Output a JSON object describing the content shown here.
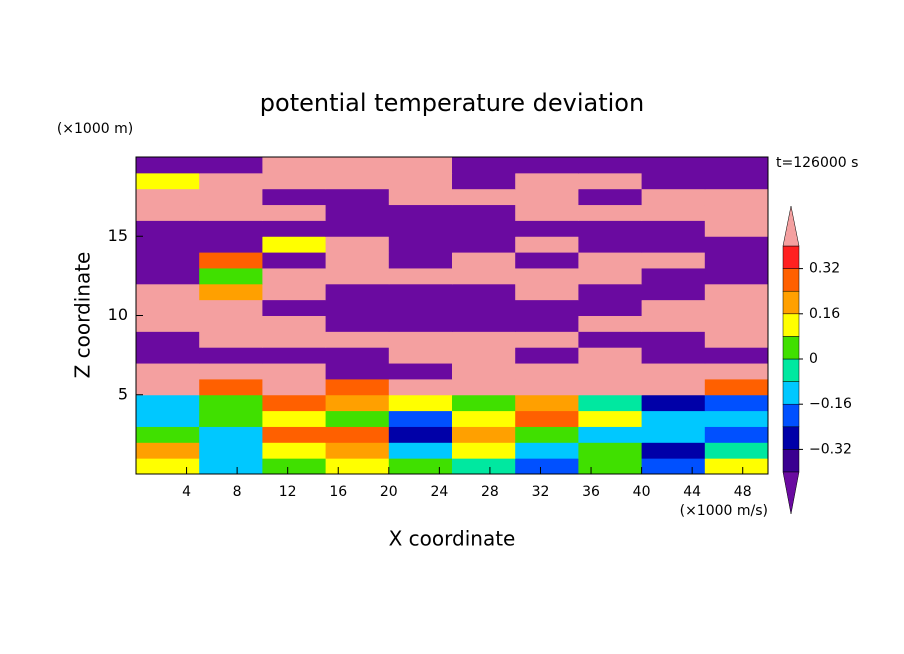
{
  "chart_data": {
    "type": "contourf",
    "title": "potential temperature deviation",
    "x_label": "X coordinate",
    "y_label": "Z coordinate",
    "x_unit": "(×1000 m/s)",
    "y_unit": "(×1000 m)",
    "annotation": "t=126000 s",
    "xlim": [
      0,
      50
    ],
    "ylim": [
      0,
      20
    ],
    "xticks": [
      4,
      8,
      12,
      16,
      20,
      24,
      28,
      32,
      36,
      40,
      44,
      48
    ],
    "yticks": [
      5,
      10,
      15
    ],
    "x": [
      2.5,
      7.5,
      12.5,
      17.5,
      22.5,
      27.5,
      32.5,
      37.5,
      42.5,
      47.5
    ],
    "y": [
      0.5,
      1.5,
      2.5,
      3.5,
      4.5,
      5.5,
      6.5,
      7.5,
      8.5,
      9.5,
      10.5,
      11.5,
      12.5,
      13.5,
      14.5,
      15.5,
      16.5,
      17.5,
      18.5,
      19.5
    ],
    "z": [
      [
        0.1,
        -0.1,
        0.05,
        0.1,
        0,
        -0.05,
        -0.2,
        0.05,
        -0.2,
        0.1
      ],
      [
        0.2,
        -0.15,
        0.1,
        0.2,
        -0.1,
        0.1,
        -0.1,
        0,
        -0.25,
        -0.05
      ],
      [
        0,
        -0.1,
        0.25,
        0.3,
        -0.3,
        0.2,
        0,
        -0.1,
        -0.15,
        -0.2
      ],
      [
        -0.1,
        0,
        0.1,
        0.05,
        -0.2,
        0.15,
        0.3,
        0.1,
        -0.1,
        -0.1
      ],
      [
        -0.15,
        0.05,
        0.3,
        0.2,
        0.1,
        0.05,
        0.2,
        -0.05,
        -0.3,
        -0.2
      ],
      [
        0.5,
        0.3,
        0.5,
        0.3,
        0.5,
        0.5,
        0.5,
        0.5,
        0.5,
        0.3
      ],
      [
        0.5,
        0.5,
        0.5,
        -0.5,
        -0.5,
        0.5,
        0.5,
        0.5,
        0.5,
        0.5
      ],
      [
        -0.5,
        -0.5,
        -0.5,
        -0.5,
        0.5,
        0.5,
        -0.5,
        0.5,
        -0.5,
        -0.5
      ],
      [
        -0.5,
        0.5,
        0.5,
        0.5,
        0.5,
        0.5,
        0.5,
        -0.5,
        -0.5,
        0.5
      ],
      [
        0.5,
        0.5,
        0.5,
        -0.5,
        -0.5,
        -0.5,
        -0.5,
        0.5,
        0.5,
        0.5
      ],
      [
        0.5,
        0.5,
        -0.5,
        -0.5,
        -0.5,
        -0.5,
        -0.5,
        -0.5,
        0.5,
        0.5
      ],
      [
        0.5,
        0.2,
        0.5,
        -0.5,
        -0.5,
        -0.5,
        0.5,
        -0.5,
        -0.5,
        0.5
      ],
      [
        -0.5,
        0,
        0.5,
        0.5,
        0.5,
        0.5,
        0.5,
        0.5,
        -0.5,
        -0.5
      ],
      [
        -0.5,
        0.3,
        -0.5,
        0.5,
        -0.5,
        0.5,
        -0.5,
        0.5,
        0.5,
        -0.5
      ],
      [
        -0.5,
        -0.5,
        0.1,
        0.5,
        -0.5,
        -0.5,
        0.5,
        -0.5,
        -0.5,
        -0.5
      ],
      [
        -0.5,
        -0.5,
        -0.5,
        -0.5,
        -0.5,
        -0.5,
        -0.5,
        -0.5,
        -0.5,
        0.5
      ],
      [
        0.5,
        0.5,
        0.5,
        -0.5,
        -0.5,
        -0.5,
        0.5,
        0.5,
        0.5,
        0.5
      ],
      [
        0.5,
        0.5,
        -0.5,
        -0.5,
        0.5,
        0.5,
        0.5,
        -0.5,
        0.5,
        0.5
      ],
      [
        0.1,
        0.5,
        0.5,
        0.5,
        0.5,
        -0.5,
        0.5,
        0.5,
        -0.5,
        -0.5
      ],
      [
        -0.5,
        -0.5,
        0.5,
        0.5,
        0.5,
        -0.5,
        -0.5,
        -0.5,
        -0.5,
        -0.5
      ]
    ],
    "levels": [
      -0.4,
      -0.32,
      -0.24,
      -0.16,
      -0.08,
      0,
      0.08,
      0.16,
      0.24,
      0.32,
      0.4
    ],
    "colors": [
      "#6a0aa0",
      "#3a0090",
      "#0000a8",
      "#0050ff",
      "#00c8ff",
      "#00e8a0",
      "#40e000",
      "#ffff00",
      "#ffa000",
      "#ff6000",
      "#ff2020",
      "#f4a0a0"
    ],
    "colorbar_ticks": [
      0.32,
      0.16,
      0,
      {
        "value": -0.16,
        "label": "−0.16"
      },
      {
        "value": -0.32,
        "label": "−0.32"
      }
    ]
  }
}
